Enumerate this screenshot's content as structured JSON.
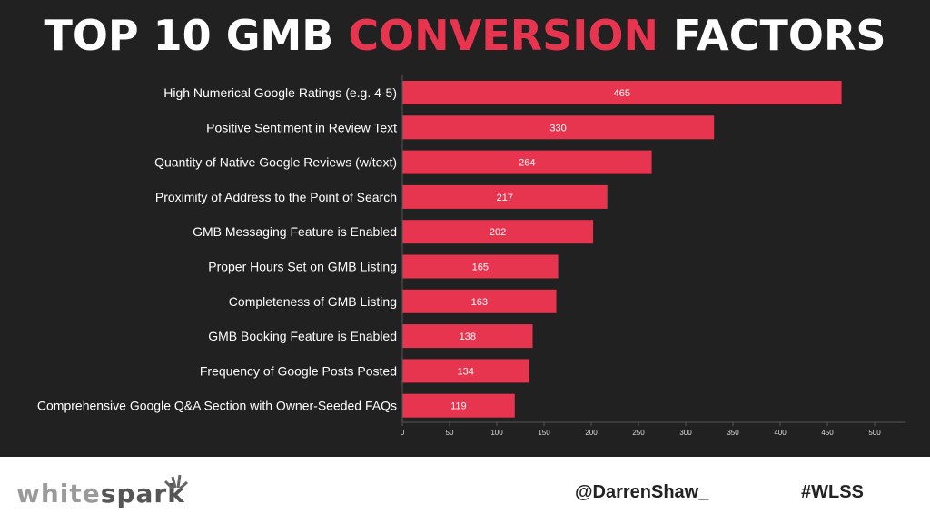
{
  "title": {
    "part1": "TOP 10 GMB ",
    "part2": "CONVERSION",
    "part3": " FACTORS"
  },
  "footer": {
    "logo_a": "white",
    "logo_b": "spark",
    "handle": "@DarrenShaw_",
    "hashtag": "#WLSS"
  },
  "colors": {
    "bar": "#e8354f",
    "background": "#212121"
  },
  "chart_data": {
    "type": "bar",
    "orientation": "horizontal",
    "categories": [
      "High Numerical Google Ratings (e.g. 4-5)",
      "Positive Sentiment in Review Text",
      "Quantity of Native Google Reviews (w/text)",
      "Proximity of Address to the Point of Search",
      "GMB Messaging Feature is Enabled",
      "Proper Hours Set on GMB Listing",
      "Completeness of GMB Listing",
      "GMB Booking Feature is Enabled",
      "Frequency of Google Posts Posted",
      "Comprehensive Google Q&A Section with Owner-Seeded FAQs"
    ],
    "values": [
      465,
      330,
      264,
      217,
      202,
      165,
      163,
      138,
      134,
      119
    ],
    "xticks": [
      0,
      50,
      100,
      150,
      200,
      250,
      300,
      350,
      400,
      450,
      500
    ],
    "xlim": [
      0,
      533
    ],
    "xlabel": "",
    "ylabel": "",
    "grid": false
  }
}
